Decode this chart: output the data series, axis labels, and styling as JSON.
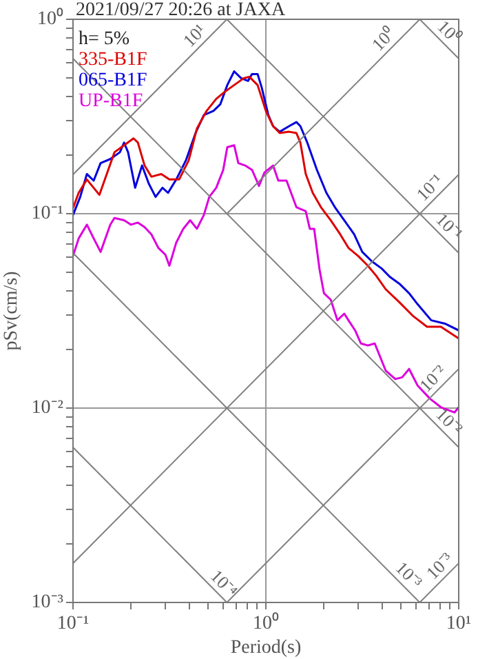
{
  "chart_data": {
    "type": "line",
    "title": "2021/09/27 20:26 at JAXA",
    "xlabel": "Period(s)",
    "ylabel": "pSv(cm/s)",
    "log": "xy",
    "grid": true,
    "legend": "top left",
    "xlim": [
      0.1,
      10
    ],
    "ylim": [
      0.001,
      1
    ],
    "xticks": [
      {
        "value": 0.1,
        "label": "10⁻¹"
      },
      {
        "value": 0.2,
        "label": null
      },
      {
        "value": 0.3,
        "label": null
      },
      {
        "value": 0.4,
        "label": null
      },
      {
        "value": 0.5,
        "label": null
      },
      {
        "value": 0.6,
        "label": null
      },
      {
        "value": 0.7,
        "label": null
      },
      {
        "value": 0.8,
        "label": null
      },
      {
        "value": 0.9,
        "label": null
      },
      {
        "value": 1,
        "label": "10⁰"
      },
      {
        "value": 2,
        "label": null
      },
      {
        "value": 3,
        "label": null
      },
      {
        "value": 4,
        "label": null
      },
      {
        "value": 5,
        "label": null
      },
      {
        "value": 6,
        "label": null
      },
      {
        "value": 7,
        "label": null
      },
      {
        "value": 8,
        "label": null
      },
      {
        "value": 9,
        "label": null
      },
      {
        "value": 10,
        "label": "10¹"
      }
    ],
    "yticks": [
      {
        "value": 0.001,
        "label": "10⁻³"
      },
      {
        "value": 0.002,
        "label": null
      },
      {
        "value": 0.003,
        "label": null
      },
      {
        "value": 0.004,
        "label": null
      },
      {
        "value": 0.005,
        "label": null
      },
      {
        "value": 0.006,
        "label": null
      },
      {
        "value": 0.007,
        "label": null
      },
      {
        "value": 0.008,
        "label": null
      },
      {
        "value": 0.009,
        "label": null
      },
      {
        "value": 0.01,
        "label": "10⁻²"
      },
      {
        "value": 0.02,
        "label": null
      },
      {
        "value": 0.03,
        "label": null
      },
      {
        "value": 0.04,
        "label": null
      },
      {
        "value": 0.05,
        "label": null
      },
      {
        "value": 0.06,
        "label": null
      },
      {
        "value": 0.07,
        "label": null
      },
      {
        "value": 0.08,
        "label": null
      },
      {
        "value": 0.09,
        "label": null
      },
      {
        "value": 0.1,
        "label": "10⁻¹"
      },
      {
        "value": 0.2,
        "label": null
      },
      {
        "value": 0.3,
        "label": null
      },
      {
        "value": 0.4,
        "label": null
      },
      {
        "value": 0.5,
        "label": null
      },
      {
        "value": 0.6,
        "label": null
      },
      {
        "value": 0.7,
        "label": null
      },
      {
        "value": 0.8,
        "label": null
      },
      {
        "value": 0.9,
        "label": null
      },
      {
        "value": 1,
        "label": "10⁰"
      }
    ],
    "series": [
      {
        "type": "line",
        "color": "#808080",
        "x": [
          0.1,
          0.628
        ],
        "values": [
          0.159,
          1
        ]
      },
      {
        "type": "line",
        "color": "#808080",
        "x": [
          0.628,
          6.28
        ],
        "values": [
          0.1,
          1
        ]
      },
      {
        "type": "line",
        "color": "#808080",
        "x": [
          0.1,
          10
        ],
        "values": [
          0.00159,
          0.159
        ]
      },
      {
        "type": "line",
        "color": "#808080",
        "x": [
          0.628,
          10
        ],
        "values": [
          0.001,
          0.0159
        ]
      },
      {
        "type": "line",
        "color": "#808080",
        "x": [
          6.28,
          10
        ],
        "values": [
          0.001,
          0.00159
        ]
      },
      {
        "type": "line",
        "color": "#808080",
        "x": [
          6.28,
          10
        ],
        "values": [
          1,
          0.628
        ]
      },
      {
        "type": "line",
        "color": "#808080",
        "x": [
          0.628,
          10
        ],
        "values": [
          1,
          0.0628
        ]
      },
      {
        "type": "line",
        "color": "#808080",
        "x": [
          0.1,
          10
        ],
        "values": [
          0.628,
          0.00628
        ]
      },
      {
        "type": "line",
        "color": "#808080",
        "x": [
          0.1,
          6.28
        ],
        "values": [
          0.0628,
          0.001
        ]
      },
      {
        "type": "line",
        "color": "#808080",
        "x": [
          0.1,
          0.628
        ],
        "values": [
          0.00628,
          0.001
        ]
      },
      {
        "type": "line",
        "name": "335-B1F",
        "color": "#dd0000",
        "x": [
          0.1,
          0.107,
          0.118,
          0.137,
          0.148,
          0.164,
          0.184,
          0.206,
          0.217,
          0.235,
          0.255,
          0.287,
          0.316,
          0.355,
          0.398,
          0.439,
          0.493,
          0.553,
          0.611,
          0.685,
          0.769,
          0.821,
          0.906,
          1.0,
          1.09,
          1.18,
          1.32,
          1.44,
          1.51,
          1.61,
          1.75,
          1.93,
          2.17,
          2.43,
          2.68,
          3.01,
          3.38,
          3.73,
          4.18,
          4.93,
          5.81,
          6.85,
          8.08,
          10
        ],
        "values": [
          0.107,
          0.128,
          0.15,
          0.125,
          0.155,
          0.207,
          0.225,
          0.244,
          0.232,
          0.177,
          0.155,
          0.16,
          0.15,
          0.15,
          0.188,
          0.274,
          0.338,
          0.39,
          0.423,
          0.459,
          0.498,
          0.506,
          0.459,
          0.338,
          0.282,
          0.26,
          0.264,
          0.26,
          0.232,
          0.16,
          0.128,
          0.108,
          0.0925,
          0.0783,
          0.0667,
          0.0606,
          0.054,
          0.048,
          0.0409,
          0.035,
          0.0297,
          0.0262,
          0.0262,
          0.0228
        ]
      },
      {
        "type": "line",
        "name": "065-B1F",
        "color": "#0000dd",
        "x": [
          0.1,
          0.109,
          0.118,
          0.128,
          0.139,
          0.156,
          0.175,
          0.184,
          0.193,
          0.21,
          0.228,
          0.247,
          0.268,
          0.291,
          0.311,
          0.343,
          0.385,
          0.432,
          0.477,
          0.535,
          0.581,
          0.631,
          0.685,
          0.744,
          0.808,
          0.848,
          0.906,
          0.952,
          1.03,
          1.09,
          1.18,
          1.32,
          1.44,
          1.51,
          1.64,
          1.84,
          2.06,
          2.28,
          2.55,
          2.87,
          3.16,
          3.55,
          3.98,
          4.39,
          4.93,
          5.53,
          6.11,
          7.2,
          8.48,
          10
        ],
        "values": [
          0.0985,
          0.122,
          0.16,
          0.148,
          0.182,
          0.191,
          0.207,
          0.232,
          0.207,
          0.136,
          0.177,
          0.143,
          0.122,
          0.136,
          0.128,
          0.15,
          0.188,
          0.26,
          0.322,
          0.338,
          0.366,
          0.459,
          0.54,
          0.498,
          0.482,
          0.523,
          0.523,
          0.445,
          0.322,
          0.282,
          0.264,
          0.282,
          0.296,
          0.282,
          0.232,
          0.168,
          0.128,
          0.108,
          0.0925,
          0.0783,
          0.0636,
          0.0568,
          0.0523,
          0.0474,
          0.0436,
          0.039,
          0.0343,
          0.0283,
          0.0272,
          0.0251
        ]
      },
      {
        "type": "line",
        "name": "UP-B1F",
        "color": "#dd00dd",
        "x": [
          0.1,
          0.107,
          0.118,
          0.128,
          0.139,
          0.156,
          0.164,
          0.184,
          0.2,
          0.217,
          0.235,
          0.255,
          0.277,
          0.301,
          0.316,
          0.343,
          0.373,
          0.405,
          0.439,
          0.477,
          0.509,
          0.553,
          0.601,
          0.631,
          0.685,
          0.72,
          0.781,
          0.848,
          0.921,
          0.984,
          1.09,
          1.16,
          1.28,
          1.44,
          1.61,
          1.69,
          1.78,
          1.9,
          2.0,
          2.17,
          2.35,
          2.55,
          2.68,
          2.91,
          3.11,
          3.38,
          3.67,
          4.18,
          4.69,
          5.09,
          5.53,
          6.11,
          7.08,
          8.08,
          9.52,
          10
        ],
        "values": [
          0.0606,
          0.0746,
          0.0878,
          0.0746,
          0.0636,
          0.0878,
          0.095,
          0.0925,
          0.0878,
          0.09,
          0.0853,
          0.0783,
          0.0667,
          0.0616,
          0.054,
          0.071,
          0.0836,
          0.0925,
          0.0836,
          0.0985,
          0.122,
          0.136,
          0.168,
          0.22,
          0.225,
          0.182,
          0.177,
          0.168,
          0.139,
          0.163,
          0.177,
          0.148,
          0.148,
          0.108,
          0.103,
          0.0836,
          0.0836,
          0.0514,
          0.039,
          0.0361,
          0.0283,
          0.0306,
          0.0283,
          0.025,
          0.0215,
          0.021,
          0.0215,
          0.0156,
          0.0141,
          0.0144,
          0.0159,
          0.0131,
          0.0112,
          0.0101,
          0.0095,
          0.0101
        ]
      }
    ],
    "annotations": [
      "h= 5%",
      {
        "text": "10¹",
        "x": 0.47,
        "y": 0.75
      },
      {
        "text": "10⁰",
        "x": 4.5,
        "y": 0.72
      },
      {
        "text": "10⁰",
        "x": 8.1,
        "y": 0.78
      },
      {
        "text": "10⁻¹",
        "x": 7.8,
        "y": 0.124
      },
      {
        "text": "10⁻¹",
        "x": 8.1,
        "y": 0.078
      },
      {
        "text": "10⁻²",
        "x": 8.1,
        "y": 0.0129
      },
      {
        "text": "10⁻²",
        "x": 8.1,
        "y": 0.00776
      },
      {
        "text": "10⁻³",
        "x": 8.77,
        "y": 0.0014
      },
      {
        "text": "10⁻³",
        "x": 5.0,
        "y": 0.00126
      },
      {
        "text": "10⁻⁴",
        "x": 0.55,
        "y": 0.00114
      }
    ]
  }
}
